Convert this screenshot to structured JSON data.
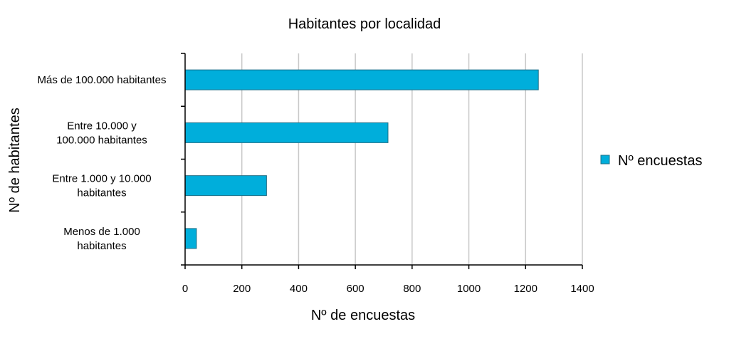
{
  "chart_data": {
    "type": "bar",
    "orientation": "horizontal",
    "title": "Habitantes por localidad",
    "xlabel": "Nº de encuestas",
    "ylabel": "Nº de habitantes",
    "categories": [
      [
        "Más de 100.000 habitantes"
      ],
      [
        "Entre 10.000 y",
        "100.000 habitantes"
      ],
      [
        "Entre 1.000 y 10.000",
        "habitantes"
      ],
      [
        "Menos de 1.000",
        "habitantes"
      ]
    ],
    "series": [
      {
        "name": "Nº encuestas",
        "color": "#00AEDB",
        "values": [
          1245,
          715,
          287,
          40
        ]
      }
    ],
    "xlim": [
      0,
      1400
    ],
    "xticks": [
      0,
      200,
      400,
      600,
      800,
      1000,
      1200,
      1400
    ],
    "grid": "vertical",
    "legend_position": "right"
  }
}
